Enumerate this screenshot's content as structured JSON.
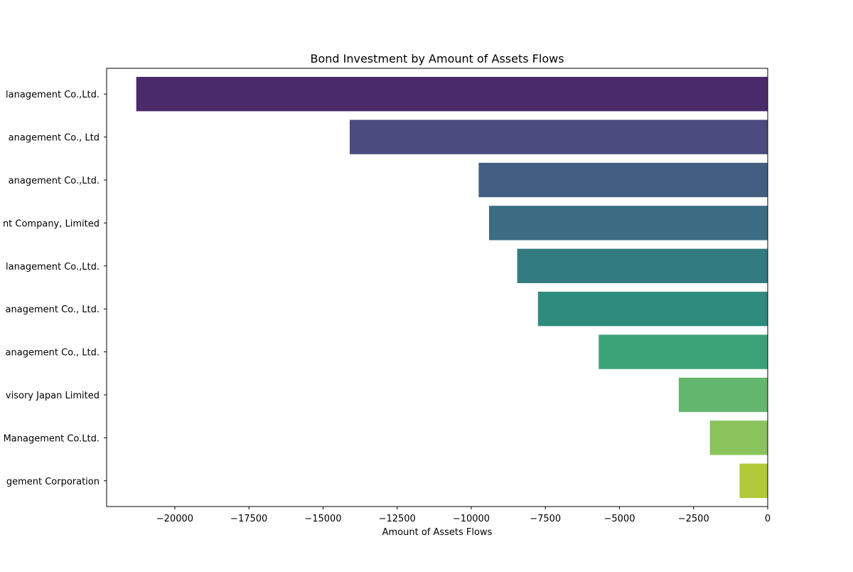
{
  "chart_data": {
    "type": "bar",
    "orientation": "horizontal",
    "title": "Bond Investment by Amount of Assets Flows",
    "xlabel": "Amount of Assets Flows",
    "ylabel": "",
    "xlim": [
      -22300,
      0
    ],
    "x_ticks": [
      -20000,
      -17500,
      -15000,
      -12500,
      -10000,
      -7500,
      -5000,
      -2500,
      0
    ],
    "x_tick_labels": [
      "−20000",
      "−17500",
      "−15000",
      "−12500",
      "−10000",
      "−7500",
      "−5000",
      "−2500",
      "0"
    ],
    "categories": [
      "lanagement Co.,Ltd.",
      "anagement Co., Ltd",
      "anagement Co.,Ltd.",
      "nt Company, Limited",
      "lanagement Co.,Ltd.",
      "anagement Co., Ltd.",
      "anagement Co., Ltd.",
      "visory Japan Limited",
      "Management Co.Ltd.",
      "gement Corporation"
    ],
    "values": [
      -21300,
      -14100,
      -9750,
      -9400,
      -8450,
      -7750,
      -5700,
      -3000,
      -1950,
      -950
    ],
    "colors": [
      "#4b2a6b",
      "#4a4b7e",
      "#425e83",
      "#3b6c84",
      "#327b81",
      "#2e8b7e",
      "#3ba278",
      "#63b76d",
      "#8ac35c",
      "#b2c93a"
    ],
    "grid": false,
    "legend": false
  }
}
